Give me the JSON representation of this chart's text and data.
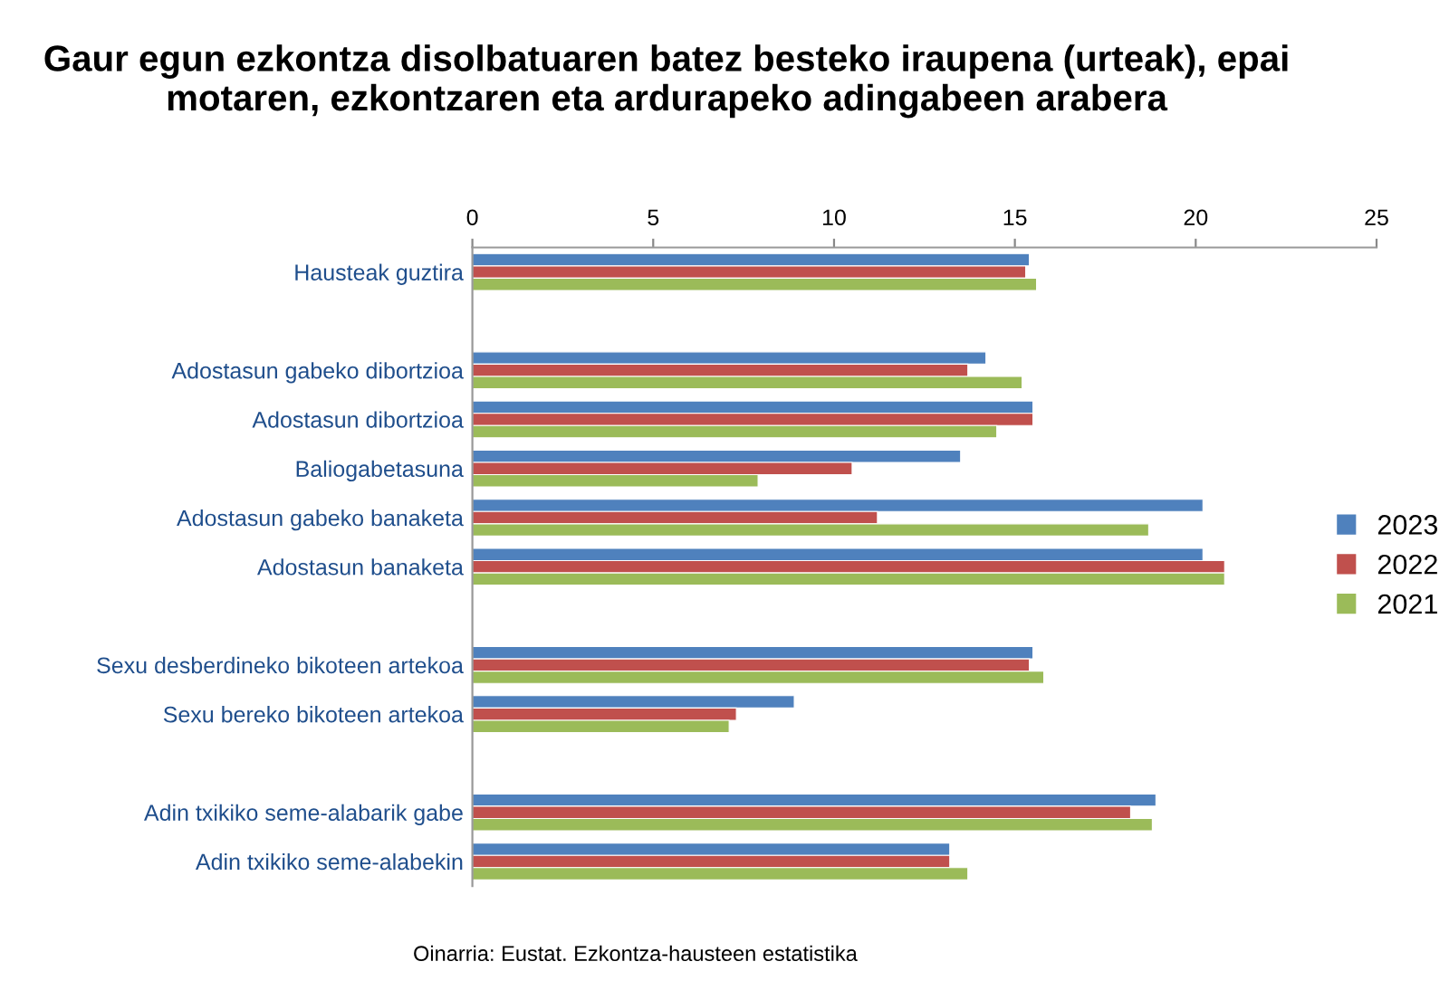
{
  "chart_data": {
    "type": "bar",
    "orientation": "horizontal",
    "title": "Gaur egun ezkontza disolbatuaren batez besteko iraupena (urteak), epai motaren, ezkontzaren eta ardurapeko adingabeen arabera",
    "categories": [
      "Hausteak guztira",
      null,
      "Adostasun gabeko dibortzioa",
      "Adostasun dibortzioa",
      "Baliogabetasuna",
      "Adostasun gabeko banaketa",
      "Adostasun banaketa",
      null,
      "Sexu desberdineko bikoteen artekoa",
      "Sexu bereko bikoteen artekoa",
      null,
      "Adin txikiko seme-alabarik gabe",
      "Adin txikiko seme-alabekin"
    ],
    "series": [
      {
        "name": "2023",
        "color": "#4f81bd",
        "values": [
          15.4,
          null,
          14.2,
          15.5,
          13.5,
          20.2,
          20.2,
          null,
          15.5,
          8.9,
          null,
          18.9,
          13.2
        ]
      },
      {
        "name": "2022",
        "color": "#c0504d",
        "values": [
          15.3,
          null,
          13.7,
          15.5,
          10.5,
          11.2,
          20.8,
          null,
          15.4,
          7.3,
          null,
          18.2,
          13.2
        ]
      },
      {
        "name": "2021",
        "color": "#9bbb59",
        "values": [
          15.6,
          null,
          15.2,
          14.5,
          7.9,
          18.7,
          20.8,
          null,
          15.8,
          7.1,
          null,
          18.8,
          13.7
        ]
      }
    ],
    "xlim": [
      0,
      25
    ],
    "xticks": [
      0,
      5,
      10,
      15,
      20,
      25
    ],
    "grid": false,
    "legend": "right",
    "annotations": [
      "Oinarria: Eustat. Ezkontza-hausteen estatistika"
    ]
  }
}
